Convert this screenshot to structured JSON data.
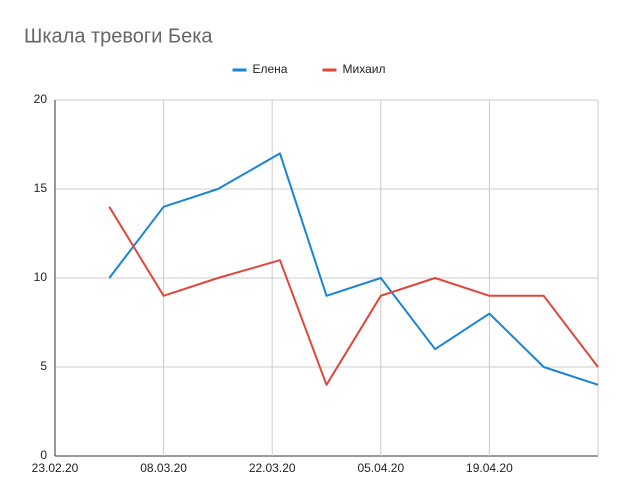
{
  "chart_data": {
    "type": "line",
    "title": "Шкала тревоги Бека",
    "x": [
      "01.03.20",
      "08.03.20",
      "15.03.20",
      "23.03.20",
      "29.03.20",
      "05.04.20",
      "12.04.20",
      "19.04.20",
      "26.04.20",
      "03.05.20"
    ],
    "series": [
      {
        "name": "Елена",
        "color": "#1a84d8",
        "values": [
          10,
          14,
          15,
          17,
          9,
          10,
          6,
          8,
          5,
          4
        ]
      },
      {
        "name": "Михаил",
        "color": "#e0463a",
        "values": [
          14,
          9,
          10,
          11,
          4,
          9,
          10,
          9,
          9,
          5
        ]
      }
    ],
    "xlim": [
      "23.02.20",
      "03.05.20"
    ],
    "xticks": [
      "23.02.20",
      "08.03.20",
      "22.03.20",
      "05.04.20",
      "19.04.20"
    ],
    "ylim": [
      0,
      20
    ],
    "yticks": [
      0,
      5,
      10,
      15,
      20
    ],
    "grid": true,
    "legend": "top"
  }
}
